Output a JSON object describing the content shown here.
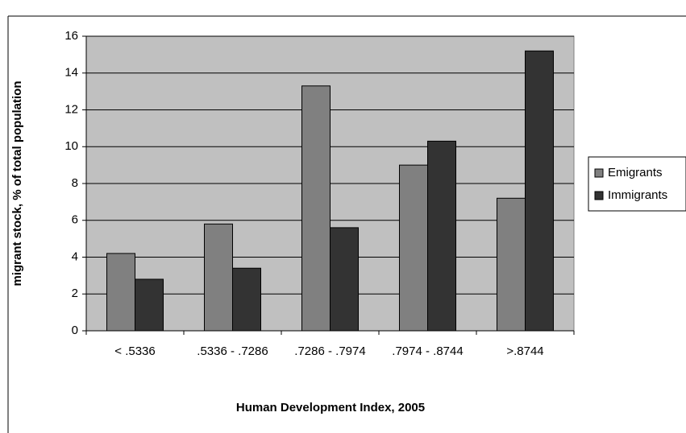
{
  "chart_data": {
    "type": "bar",
    "x_label": "Human Development Index, 2005",
    "y_label": "migrant stock, % of total population",
    "categories": [
      "< .5336",
      ".5336 - .7286",
      ".7286 - .7974",
      ".7974 - .8744",
      ">.8744"
    ],
    "series": [
      {
        "name": "Emigrants",
        "color": "#808080",
        "values": [
          4.2,
          5.8,
          13.3,
          9.0,
          7.2
        ]
      },
      {
        "name": "Immigrants",
        "color": "#333333",
        "values": [
          2.8,
          3.4,
          5.6,
          10.3,
          15.2
        ]
      }
    ],
    "ylim": [
      0,
      16
    ],
    "yticks": [
      0,
      2,
      4,
      6,
      8,
      10,
      12,
      14,
      16
    ],
    "grid": true,
    "legend": "right"
  }
}
